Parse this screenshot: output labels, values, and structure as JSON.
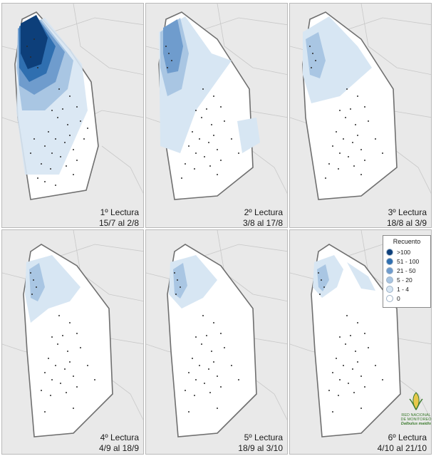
{
  "panels": [
    {
      "id": "1",
      "line1": "1º Lectura",
      "line2": "15/7 al 2/8"
    },
    {
      "id": "2",
      "line1": "2º Lectura",
      "line2": "3/8 al 17/8"
    },
    {
      "id": "3",
      "line1": "3º Lectura",
      "line2": "18/8 al 3/9"
    },
    {
      "id": "4",
      "line1": "4º Lectura",
      "line2": "4/9 al 18/9"
    },
    {
      "id": "5",
      "line1": "5º Lectura",
      "line2": "18/9 al 3/10"
    },
    {
      "id": "6",
      "line1": "6º Lectura",
      "line2": "4/10 al 21/10"
    }
  ],
  "legend": {
    "title": "Recuento",
    "items": [
      {
        "label": ">100",
        "color": "#0d3f7a"
      },
      {
        "label": "51 - 100",
        "color": "#2f6fb0"
      },
      {
        "label": "21 - 50",
        "color": "#6f9ccd"
      },
      {
        "label": "5 - 20",
        "color": "#a9c6e3"
      },
      {
        "label": "1 - 4",
        "color": "#d7e6f3"
      },
      {
        "label": "0",
        "color": "#ffffff"
      }
    ]
  },
  "logo": {
    "line1": "RED NACIONAL",
    "line2": "DE MONITOREO",
    "line3": "Dalbulus maidis"
  }
}
